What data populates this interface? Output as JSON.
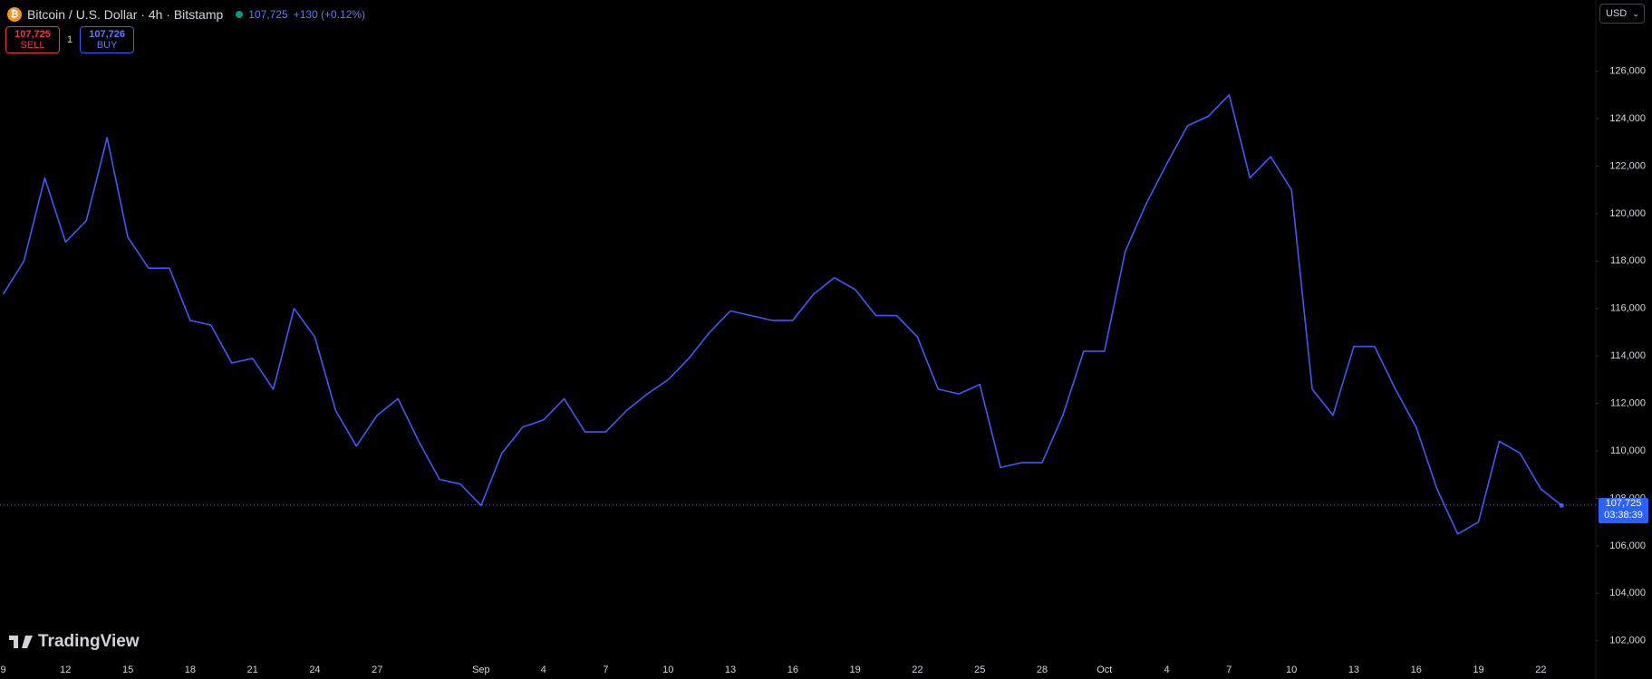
{
  "header": {
    "title": "Bitcoin / U.S. Dollar · 4h · Bitstamp",
    "price": "107,725",
    "change": "+130 (+0.12%)"
  },
  "trade": {
    "sell_price": "107,725",
    "sell_label": "SELL",
    "quantity": "1",
    "buy_price": "107,726",
    "buy_label": "BUY"
  },
  "currency": "USD",
  "watermark": "TradingView",
  "chart_data": {
    "type": "line",
    "color": "#3d5afe",
    "categories": [
      "9",
      null,
      null,
      "12",
      null,
      null,
      "15",
      null,
      null,
      "18",
      null,
      null,
      "21",
      null,
      null,
      "24",
      null,
      null,
      "27",
      null,
      null,
      null,
      null,
      "Sep",
      null,
      null,
      "4",
      null,
      null,
      "7",
      null,
      null,
      "10",
      null,
      null,
      "13",
      null,
      null,
      "16",
      null,
      null,
      "19",
      null,
      null,
      "22",
      null,
      null,
      "25",
      null,
      null,
      "28",
      null,
      null,
      "Oct",
      null,
      null,
      "4",
      null,
      null,
      "7",
      null,
      null,
      "10",
      null,
      null,
      "13",
      null,
      null,
      "16",
      null,
      null,
      "19",
      null,
      null,
      "22",
      null
    ],
    "values": [
      116600,
      118000,
      121500,
      118800,
      119700,
      123200,
      119000,
      117700,
      117700,
      115500,
      115300,
      113700,
      113900,
      112600,
      116000,
      114800,
      111700,
      110200,
      111500,
      112200,
      110400,
      108800,
      108600,
      107700,
      109900,
      111000,
      111300,
      112200,
      110800,
      110800,
      111700,
      112400,
      113000,
      113900,
      115000,
      115900,
      115700,
      115500,
      115500,
      116600,
      117300,
      116800,
      115700,
      115700,
      114800,
      112600,
      112400,
      112800,
      109300,
      109500,
      109500,
      111500,
      114200,
      114200,
      118400,
      120400,
      122100,
      123700,
      124100,
      125000,
      121500,
      122400,
      121000,
      112600,
      111500,
      114400,
      114400,
      112600,
      111000,
      108400,
      106500,
      107000,
      110400,
      109900,
      108400,
      107700
    ],
    "ylim": [
      101150,
      129000
    ],
    "yticks": [
      {
        "value": 102000,
        "label": "102,000"
      },
      {
        "value": 104000,
        "label": "104,000"
      },
      {
        "value": 106000,
        "label": "106,000"
      },
      {
        "value": 108000,
        "label": "108,000"
      },
      {
        "value": 110000,
        "label": "110,000"
      },
      {
        "value": 112000,
        "label": "112,000"
      },
      {
        "value": 114000,
        "label": "114,000"
      },
      {
        "value": 116000,
        "label": "116,000"
      },
      {
        "value": 118000,
        "label": "118,000"
      },
      {
        "value": 120000,
        "label": "120,000"
      },
      {
        "value": 122000,
        "label": "122,000"
      },
      {
        "value": 124000,
        "label": "124,000"
      },
      {
        "value": 126000,
        "label": "126,000"
      }
    ],
    "last_price": {
      "value": 107725,
      "label": "107,725"
    },
    "countdown": "03:38:39",
    "grid": false
  }
}
